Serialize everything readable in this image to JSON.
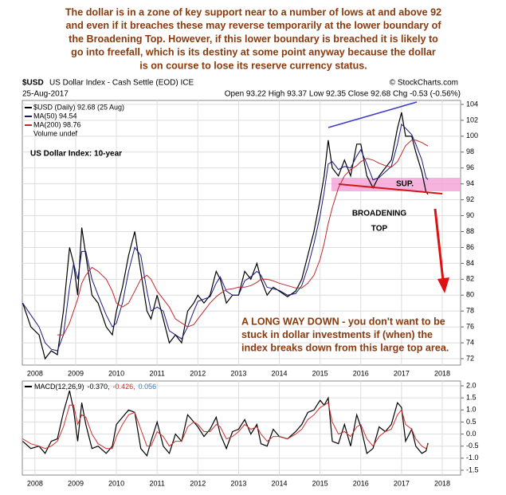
{
  "header": {
    "annotation_lines": [
      "The dollar is in a zone of key support near to a number of lows at and above 92",
      "and even if it breaches these may reverse temporarily at the lower boundary of",
      "the Broadening Top. However, if this lower boundary is breached it is likely to",
      "go into freefall, which is its destiny at some point anyway because the dollar",
      "is on course to lose its reserve currency status."
    ],
    "symbol": "$USD",
    "name": "US Dollar Index - Cash Settle (EOD) ICE",
    "copyright": "© StockCharts.com",
    "date": "25-Aug-2017",
    "quote": "Open 93.22   High 93.37   Low 92.35   Close 92.68   Chg -0.53 (-0.56%)"
  },
  "chart_data": [
    {
      "type": "line",
      "x": [
        2007.7,
        2007.9,
        2008.1,
        2008.25,
        2008.4,
        2008.55,
        2008.7,
        2008.85,
        2008.95,
        2009.05,
        2009.15,
        2009.25,
        2009.4,
        2009.55,
        2009.75,
        2009.9,
        2010.0,
        2010.15,
        2010.3,
        2010.45,
        2010.6,
        2010.75,
        2010.85,
        2011.0,
        2011.15,
        2011.3,
        2011.45,
        2011.6,
        2011.75,
        2011.9,
        2012.0,
        2012.15,
        2012.3,
        2012.45,
        2012.55,
        2012.7,
        2012.85,
        2013.0,
        2013.15,
        2013.3,
        2013.45,
        2013.55,
        2013.7,
        2013.85,
        2014.0,
        2014.2,
        2014.4,
        2014.55,
        2014.7,
        2014.85,
        2015.0,
        2015.1,
        2015.2,
        2015.3,
        2015.45,
        2015.6,
        2015.75,
        2015.9,
        2016.0,
        2016.15,
        2016.3,
        2016.45,
        2016.6,
        2016.75,
        2016.9,
        2017.0,
        2017.1,
        2017.25,
        2017.35,
        2017.5,
        2017.6,
        2017.65
      ],
      "series": [
        {
          "name": "$USD (Daily) 92.68 (25 Aug)",
          "color": "#000000",
          "values": [
            79,
            76,
            75,
            72,
            73,
            72.5,
            78,
            86,
            84,
            80,
            88.5,
            85,
            80,
            79,
            76,
            75,
            78,
            81,
            85,
            88,
            83,
            78,
            77,
            80,
            77,
            74,
            75,
            74,
            78,
            79,
            80,
            79,
            80,
            83,
            82,
            79,
            80,
            80,
            83,
            82,
            84,
            82,
            80,
            81,
            80.5,
            79.8,
            80.5,
            82,
            85,
            88,
            92,
            95,
            99.5,
            96,
            95,
            97,
            95,
            99,
            99,
            95,
            93.5,
            95,
            96,
            97,
            101,
            103,
            100,
            100,
            98,
            95.5,
            93,
            92.68
          ]
        },
        {
          "name": "MA(50) 94.54",
          "color": "#1a1a80",
          "values": [
            79,
            77.5,
            76,
            74,
            73.2,
            73,
            75,
            81,
            84,
            82,
            85.5,
            85.5,
            82,
            80,
            77.5,
            76,
            76.5,
            79,
            83,
            86,
            85,
            80.5,
            78,
            78.5,
            78,
            75.5,
            75,
            74.5,
            76,
            78,
            79.2,
            79.5,
            79.8,
            81.5,
            82.3,
            80.5,
            80,
            80,
            81.8,
            82.3,
            83,
            82.5,
            81,
            80.8,
            80.6,
            80,
            80.2,
            81.2,
            83.5,
            86.5,
            90,
            93,
            96.5,
            96.8,
            95.8,
            96.2,
            96,
            97.5,
            98.3,
            96.5,
            94.5,
            94.8,
            95.5,
            96.2,
            99,
            101.5,
            101,
            100.2,
            99,
            97,
            94.8,
            94.54
          ]
        },
        {
          "name": "MA(200) 98.76",
          "color": "#c0282d",
          "values": [
            null,
            null,
            null,
            null,
            null,
            75,
            75,
            76.5,
            78,
            79.5,
            81.5,
            82.5,
            83.5,
            83,
            82,
            80.5,
            79,
            78.5,
            79,
            80.5,
            82,
            82.5,
            82,
            80.5,
            79.5,
            78.5,
            77,
            76.5,
            76,
            76.3,
            77,
            78,
            79,
            79.8,
            80.2,
            80.7,
            80.8,
            81,
            81,
            81.2,
            81.6,
            82,
            82,
            81.8,
            81.5,
            81.2,
            80.9,
            80.9,
            81.5,
            82.5,
            84.5,
            86.5,
            89,
            91,
            93.5,
            95,
            95.8,
            96.3,
            96.8,
            97.2,
            97,
            96.6,
            96.3,
            96.1,
            96.8,
            97.8,
            98.8,
            99.5,
            99.5,
            99.2,
            98.9,
            98.76
          ]
        }
      ],
      "legend_extra": "Volume undef",
      "annotations": {
        "title": "US Dollar Index: 10-year",
        "support": "SUP.",
        "pattern": [
          "BROADENING",
          "TOP"
        ],
        "note": [
          "A LONG WAY DOWN - you don't want to be",
          "stuck in dollar investments if (when) the",
          "index breaks down from this large top area."
        ]
      },
      "xlim": [
        2007.69,
        2018.45
      ],
      "xticks": [
        2008,
        2009,
        2010,
        2011,
        2012,
        2013,
        2014,
        2015,
        2016,
        2017,
        2018
      ],
      "ylim": [
        71.2,
        104.5
      ],
      "yticks": [
        72,
        74,
        76,
        78,
        80,
        82,
        84,
        86,
        88,
        90,
        92,
        94,
        96,
        98,
        100,
        102,
        104
      ],
      "grid": true
    },
    {
      "type": "line",
      "x": [
        2007.7,
        2007.9,
        2008.1,
        2008.25,
        2008.4,
        2008.55,
        2008.7,
        2008.85,
        2008.95,
        2009.05,
        2009.15,
        2009.25,
        2009.4,
        2009.55,
        2009.75,
        2009.9,
        2010.0,
        2010.15,
        2010.3,
        2010.45,
        2010.6,
        2010.75,
        2010.85,
        2011.0,
        2011.15,
        2011.3,
        2011.45,
        2011.6,
        2011.75,
        2011.9,
        2012.0,
        2012.15,
        2012.3,
        2012.45,
        2012.55,
        2012.7,
        2012.85,
        2013.0,
        2013.15,
        2013.3,
        2013.45,
        2013.55,
        2013.7,
        2013.85,
        2014.0,
        2014.2,
        2014.4,
        2014.55,
        2014.7,
        2014.85,
        2015.0,
        2015.1,
        2015.2,
        2015.3,
        2015.45,
        2015.6,
        2015.75,
        2015.9,
        2016.0,
        2016.15,
        2016.3,
        2016.45,
        2016.6,
        2016.75,
        2016.9,
        2017.0,
        2017.1,
        2017.25,
        2017.35,
        2017.5,
        2017.6,
        2017.65
      ],
      "series": [
        {
          "name": "MACD(12,26,9)",
          "color": "#000000",
          "values": [
            -0.3,
            -0.6,
            -0.5,
            -0.8,
            -0.3,
            -0.2,
            0.9,
            1.8,
            1.0,
            -0.3,
            1.3,
            0.4,
            -0.6,
            -0.5,
            -0.8,
            -0.5,
            0.4,
            0.7,
            1.0,
            0.9,
            -0.6,
            -0.9,
            -0.3,
            0.5,
            -0.5,
            -0.8,
            0.0,
            -0.3,
            0.8,
            0.5,
            0.3,
            -0.1,
            0.2,
            0.7,
            0.0,
            -0.6,
            0.1,
            0.2,
            0.6,
            0.0,
            0.4,
            -0.4,
            -0.5,
            0.2,
            -0.1,
            -0.2,
            0.1,
            0.4,
            0.9,
            1.0,
            1.4,
            1.2,
            1.5,
            -0.3,
            -0.4,
            0.4,
            -0.5,
            0.8,
            0.3,
            -0.8,
            -0.6,
            0.3,
            0.1,
            0.4,
            1.3,
            1.1,
            -0.3,
            0.2,
            -0.5,
            -0.8,
            -0.7,
            -0.37
          ]
        },
        {
          "name": "Signal",
          "color": "#d03030",
          "values": [
            -0.2,
            -0.4,
            -0.5,
            -0.6,
            -0.5,
            -0.3,
            0.3,
            1.2,
            1.2,
            0.4,
            0.8,
            0.7,
            0.0,
            -0.4,
            -0.6,
            -0.6,
            -0.1,
            0.4,
            0.8,
            0.9,
            0.2,
            -0.5,
            -0.5,
            0.1,
            -0.1,
            -0.5,
            -0.3,
            -0.3,
            0.3,
            0.5,
            0.4,
            0.1,
            0.1,
            0.4,
            0.3,
            -0.2,
            -0.1,
            0.1,
            0.4,
            0.2,
            0.3,
            0.0,
            -0.3,
            -0.1,
            -0.1,
            -0.2,
            0.0,
            0.2,
            0.6,
            0.8,
            1.1,
            1.2,
            1.3,
            0.5,
            0.0,
            0.1,
            -0.1,
            0.3,
            0.4,
            -0.2,
            -0.5,
            -0.1,
            0.1,
            0.2,
            0.8,
            1.0,
            0.4,
            0.2,
            -0.2,
            -0.5,
            -0.6,
            -0.426
          ]
        }
      ],
      "legend_values": [
        {
          "text": "-0.370,",
          "color": "#000000"
        },
        {
          "text": "-0.426,",
          "color": "#d03030"
        },
        {
          "text": "0.056",
          "color": "#3a7ab8"
        }
      ],
      "xlim": [
        2007.69,
        2018.45
      ],
      "xticks": [
        2008,
        2009,
        2010,
        2011,
        2012,
        2013,
        2014,
        2015,
        2016,
        2017,
        2018
      ],
      "ylim": [
        -1.7,
        2.2
      ],
      "yticks": [
        {
          "value": 2,
          "label": "2.0"
        },
        {
          "value": 1.5,
          "label": "1.5"
        },
        {
          "value": 1,
          "label": "1.0"
        },
        {
          "value": 0.5,
          "label": "0.5"
        },
        {
          "value": 0,
          "label": "0.0"
        },
        {
          "value": -0.5,
          "label": "-0.5"
        },
        {
          "value": -1,
          "label": "-1.0"
        },
        {
          "value": -1.5,
          "label": "-1.5"
        }
      ],
      "grid": true
    }
  ]
}
